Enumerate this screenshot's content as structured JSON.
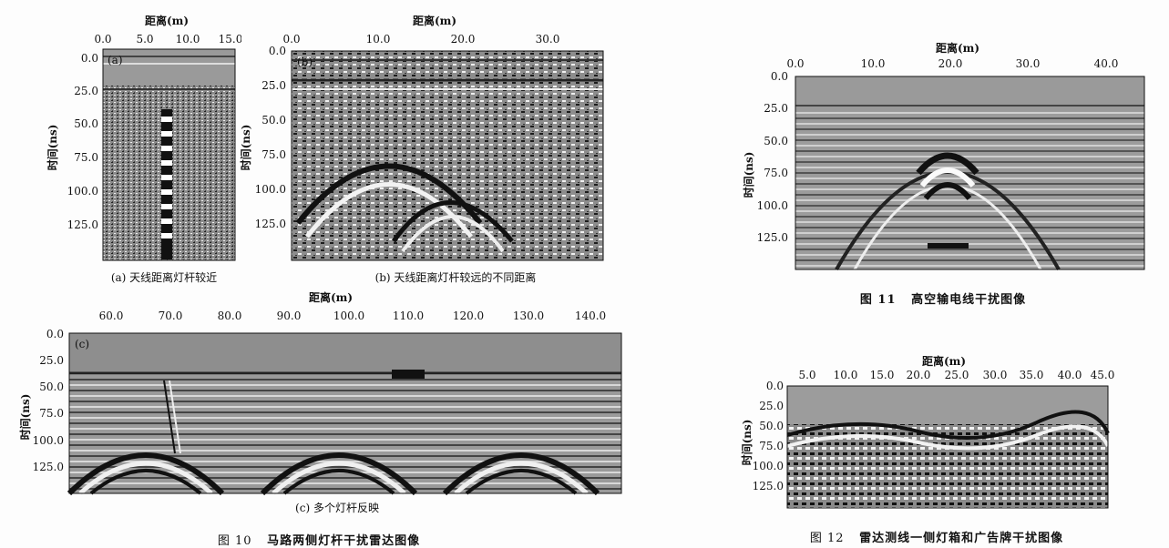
{
  "panels": {
    "a": {
      "label": "(a)",
      "caption": "(a) 天线距离灯杆较近",
      "xlabel": "距离(m)",
      "ylabel": "时间(ns)",
      "xticks": [
        "0.0",
        "5.0",
        "10.0",
        "15.0"
      ],
      "yticks": [
        "0.0",
        "25.0",
        "50.0",
        "75.0",
        "100.0",
        "125.0"
      ],
      "xlim": [
        0,
        15
      ],
      "ylim": [
        0,
        150
      ]
    },
    "b": {
      "label": "(b)",
      "caption": "(b) 天线距离灯杆较远的不同距离",
      "xlabel": "距离(m)",
      "ylabel": "时间(ns)",
      "xticks": [
        "0.0",
        "10.0",
        "20.0",
        "30.0"
      ],
      "yticks": [
        "0.0",
        "25.0",
        "50.0",
        "75.0",
        "100.0",
        "125.0"
      ],
      "xlim": [
        0,
        37
      ],
      "ylim": [
        0,
        150
      ]
    },
    "c": {
      "label": "(c)",
      "caption": "(c) 多个灯杆反映",
      "xlabel": "距离(m)",
      "ylabel": "时间(ns)",
      "xticks": [
        "60.0",
        "70.0",
        "80.0",
        "90.0",
        "100.0",
        "110.0",
        "120.0",
        "130.0",
        "140.0"
      ],
      "yticks": [
        "0.0",
        "25.0",
        "50.0",
        "75.0",
        "100.0",
        "125.0"
      ],
      "xlim": [
        55,
        144
      ],
      "ylim": [
        0,
        150
      ]
    },
    "f11": {
      "xlabel": "距离(m)",
      "ylabel": "时间(ns)",
      "xticks": [
        "0.0",
        "10.0",
        "20.0",
        "30.0",
        "40.0"
      ],
      "yticks": [
        "0.0",
        "25.0",
        "50.0",
        "75.0",
        "100.0",
        "125.0"
      ],
      "xlim": [
        0,
        45
      ],
      "ylim": [
        0,
        150
      ]
    },
    "f12": {
      "xlabel": "距离(m)",
      "ylabel": "时间(ns)",
      "xticks": [
        "5.0",
        "10.0",
        "15.0",
        "20.0",
        "25.0",
        "30.0",
        "35.0",
        "40.0",
        "45.0"
      ],
      "yticks": [
        "0.0",
        "25.0",
        "50.0",
        "75.0",
        "100.0",
        "125.0"
      ],
      "xlim": [
        0,
        47
      ],
      "ylim": [
        0,
        150
      ]
    }
  },
  "figures": {
    "fig10": {
      "num": "图 10",
      "title": "马路两侧灯杆干扰雷达图像"
    },
    "fig11": {
      "num": "图 11",
      "title": "高空输电线干扰图像"
    },
    "fig12": {
      "num": "图 12",
      "title": "雷达测线一侧灯箱和广告牌干扰图像"
    }
  }
}
